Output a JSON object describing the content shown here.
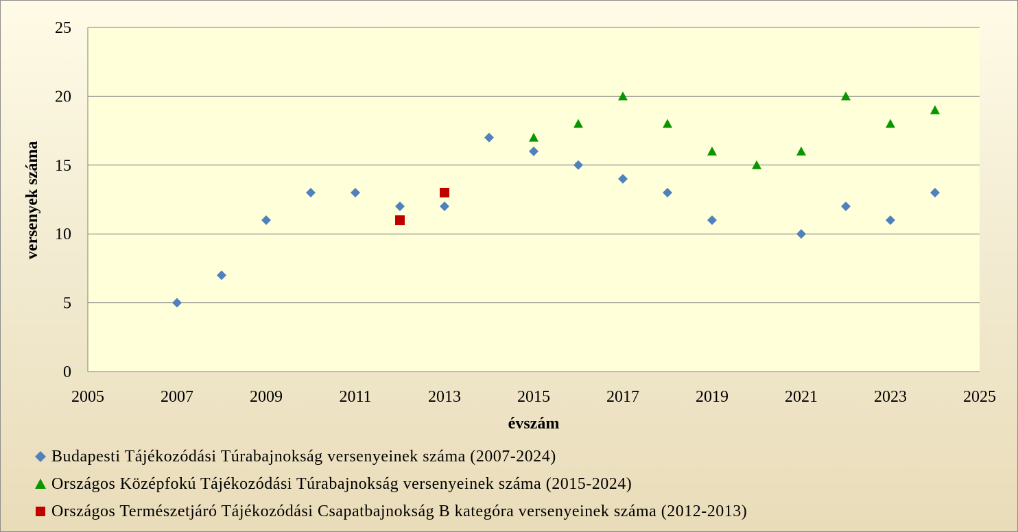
{
  "chart_data": {
    "type": "scatter",
    "title": "",
    "xlabel": "évszám",
    "ylabel": "versenyek száma",
    "xlim": [
      2005,
      2025
    ],
    "ylim": [
      0,
      25
    ],
    "x_ticks": [
      2005,
      2007,
      2009,
      2011,
      2013,
      2015,
      2017,
      2019,
      2021,
      2023,
      2025
    ],
    "y_ticks": [
      0,
      5,
      10,
      15,
      20,
      25
    ],
    "grid": "horizontal",
    "plot_background": "#ffffd9",
    "legend_placement": "bottom",
    "series": [
      {
        "name": "Budapesti Tájékozódási Túrabajnokság versenyeinek száma (2007-2024)",
        "marker": "diamond",
        "color": "#4f81bd",
        "points": [
          {
            "x": 2007,
            "y": 5
          },
          {
            "x": 2008,
            "y": 7
          },
          {
            "x": 2009,
            "y": 11
          },
          {
            "x": 2010,
            "y": 13
          },
          {
            "x": 2011,
            "y": 13
          },
          {
            "x": 2012,
            "y": 12
          },
          {
            "x": 2013,
            "y": 12
          },
          {
            "x": 2014,
            "y": 17
          },
          {
            "x": 2015,
            "y": 16
          },
          {
            "x": 2016,
            "y": 15
          },
          {
            "x": 2017,
            "y": 14
          },
          {
            "x": 2018,
            "y": 13
          },
          {
            "x": 2019,
            "y": 11
          },
          {
            "x": 2021,
            "y": 10
          },
          {
            "x": 2022,
            "y": 12
          },
          {
            "x": 2023,
            "y": 11
          },
          {
            "x": 2024,
            "y": 13
          }
        ]
      },
      {
        "name": "Országos Középfokú Tájékozódási Túrabajnokság versenyeinek száma (2015-2024)",
        "marker": "triangle",
        "color": "#0a9600",
        "points": [
          {
            "x": 2015,
            "y": 17
          },
          {
            "x": 2016,
            "y": 18
          },
          {
            "x": 2017,
            "y": 20
          },
          {
            "x": 2018,
            "y": 18
          },
          {
            "x": 2019,
            "y": 16
          },
          {
            "x": 2020,
            "y": 15
          },
          {
            "x": 2021,
            "y": 16
          },
          {
            "x": 2022,
            "y": 20
          },
          {
            "x": 2023,
            "y": 18
          },
          {
            "x": 2024,
            "y": 19
          }
        ]
      },
      {
        "name": "Országos Természetjáró Tájékozódási Csapatbajnokság B kategóra versenyeinek száma (2012-2013)",
        "marker": "square",
        "color": "#c00000",
        "points": [
          {
            "x": 2012,
            "y": 11
          },
          {
            "x": 2013,
            "y": 13
          }
        ]
      }
    ]
  }
}
